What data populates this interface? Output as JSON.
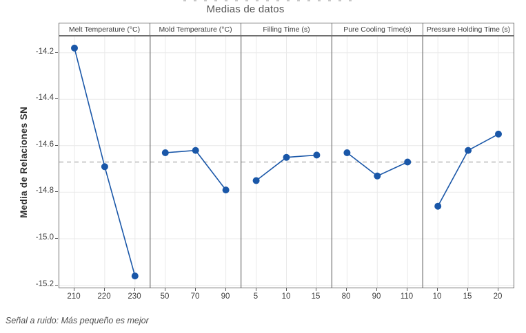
{
  "page": {
    "title": "Medias de datos",
    "footnote": "Señal a ruido: Más pequeño es mejor"
  },
  "chart_data": {
    "type": "line",
    "subtype": "main-effects-plot",
    "title": "Medias de datos",
    "ylabel": "Media de Relaciones SN",
    "footnote": "Señal a ruido: Más pequeño es mejor",
    "ylim": [
      -15.21,
      -14.13
    ],
    "yticks": [
      -14.2,
      -14.4,
      -14.6,
      -14.8,
      -15.0,
      -15.2
    ],
    "mean_reference": -14.67,
    "grid": true,
    "legend": "none",
    "panels": [
      {
        "label": "Melt Temperature (°C)",
        "x": [
          210,
          220,
          230
        ],
        "values": [
          -14.18,
          -14.69,
          -15.16
        ]
      },
      {
        "label": "Mold Temperature (°C)",
        "x": [
          50,
          70,
          90
        ],
        "values": [
          -14.63,
          -14.62,
          -14.79
        ]
      },
      {
        "label": "Filling Time (s)",
        "x": [
          5,
          10,
          15
        ],
        "values": [
          -14.75,
          -14.65,
          -14.64
        ]
      },
      {
        "label": "Pure Cooling Time(s)",
        "x": [
          80,
          90,
          110
        ],
        "values": [
          -14.63,
          -14.73,
          -14.67
        ]
      },
      {
        "label": "Pressure Holding Time (s)",
        "x": [
          10,
          15,
          20
        ],
        "values": [
          -14.86,
          -14.62,
          -14.55
        ]
      }
    ],
    "colors": {
      "series": "#1a57a8",
      "marker": "#1a57a8",
      "mean_line": "#a6a6a6",
      "grid": "#e9e9e9",
      "frame": "#6f6f6f",
      "tick_text": "#3d3d3d",
      "title_text": "#565656"
    }
  }
}
